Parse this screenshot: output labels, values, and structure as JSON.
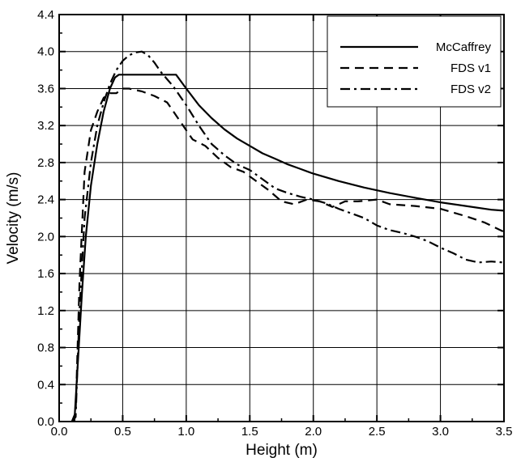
{
  "chart_data": {
    "type": "line",
    "title": "",
    "xlabel": "Height (m)",
    "ylabel": "Velocity (m/s)",
    "xlim": [
      0.0,
      3.5
    ],
    "ylim": [
      0.0,
      4.4
    ],
    "xticks": [
      "0.0",
      "0.5",
      "1.0",
      "1.5",
      "2.0",
      "2.5",
      "3.0",
      "3.5"
    ],
    "yticks": [
      "0.0",
      "0.4",
      "0.8",
      "1.2",
      "1.6",
      "2.0",
      "2.4",
      "2.8",
      "3.2",
      "3.6",
      "4.0",
      "4.4"
    ],
    "grid": true,
    "legend_position": "top-right",
    "series": [
      {
        "name": "McCaffrey",
        "style": "solid",
        "color": "#000000",
        "x": [
          0.12,
          0.15,
          0.18,
          0.21,
          0.25,
          0.3,
          0.35,
          0.4,
          0.44,
          0.47,
          0.55,
          0.65,
          0.75,
          0.85,
          0.92,
          1.0,
          1.1,
          1.2,
          1.3,
          1.4,
          1.5,
          1.6,
          1.7,
          1.8,
          1.9,
          2.0,
          2.2,
          2.4,
          2.6,
          2.8,
          3.0,
          3.2,
          3.4,
          3.5
        ],
        "y": [
          0.0,
          0.7,
          1.4,
          2.0,
          2.55,
          3.0,
          3.35,
          3.6,
          3.72,
          3.75,
          3.75,
          3.75,
          3.75,
          3.75,
          3.75,
          3.6,
          3.42,
          3.28,
          3.16,
          3.06,
          2.98,
          2.9,
          2.84,
          2.78,
          2.73,
          2.68,
          2.6,
          2.53,
          2.47,
          2.42,
          2.37,
          2.33,
          2.29,
          2.28
        ]
      },
      {
        "name": "FDS v1",
        "style": "dashed",
        "color": "#000000",
        "x": [
          0.1,
          0.13,
          0.16,
          0.2,
          0.25,
          0.3,
          0.35,
          0.4,
          0.45,
          0.5,
          0.55,
          0.65,
          0.75,
          0.85,
          0.95,
          1.05,
          1.15,
          1.25,
          1.35,
          1.45,
          1.55,
          1.65,
          1.75,
          1.85,
          1.95,
          2.05,
          2.15,
          2.25,
          2.35,
          2.5,
          2.6,
          2.8,
          3.0,
          3.2,
          3.35,
          3.5
        ],
        "y": [
          0.0,
          0.1,
          1.5,
          2.7,
          3.15,
          3.35,
          3.5,
          3.55,
          3.55,
          3.6,
          3.6,
          3.57,
          3.52,
          3.45,
          3.25,
          3.05,
          2.98,
          2.85,
          2.75,
          2.7,
          2.6,
          2.5,
          2.38,
          2.35,
          2.4,
          2.38,
          2.32,
          2.38,
          2.38,
          2.4,
          2.35,
          2.33,
          2.3,
          2.22,
          2.15,
          2.05
        ]
      },
      {
        "name": "FDS v2",
        "style": "dashdot",
        "color": "#000000",
        "x": [
          0.1,
          0.13,
          0.16,
          0.2,
          0.25,
          0.3,
          0.35,
          0.4,
          0.45,
          0.5,
          0.55,
          0.6,
          0.65,
          0.7,
          0.75,
          0.8,
          0.85,
          0.9,
          0.95,
          1.0,
          1.1,
          1.2,
          1.3,
          1.4,
          1.5,
          1.6,
          1.7,
          1.8,
          1.9,
          2.0,
          2.1,
          2.2,
          2.3,
          2.4,
          2.5,
          2.6,
          2.7,
          2.8,
          2.9,
          3.0,
          3.1,
          3.2,
          3.3,
          3.4,
          3.5
        ],
        "y": [
          0.0,
          0.05,
          1.2,
          2.2,
          2.8,
          3.2,
          3.45,
          3.65,
          3.8,
          3.9,
          3.96,
          3.99,
          4.0,
          3.96,
          3.88,
          3.78,
          3.7,
          3.62,
          3.52,
          3.42,
          3.2,
          3.0,
          2.88,
          2.78,
          2.72,
          2.62,
          2.52,
          2.47,
          2.43,
          2.4,
          2.36,
          2.3,
          2.25,
          2.2,
          2.12,
          2.07,
          2.04,
          2.0,
          1.95,
          1.88,
          1.82,
          1.75,
          1.72,
          1.73,
          1.72
        ]
      }
    ]
  }
}
